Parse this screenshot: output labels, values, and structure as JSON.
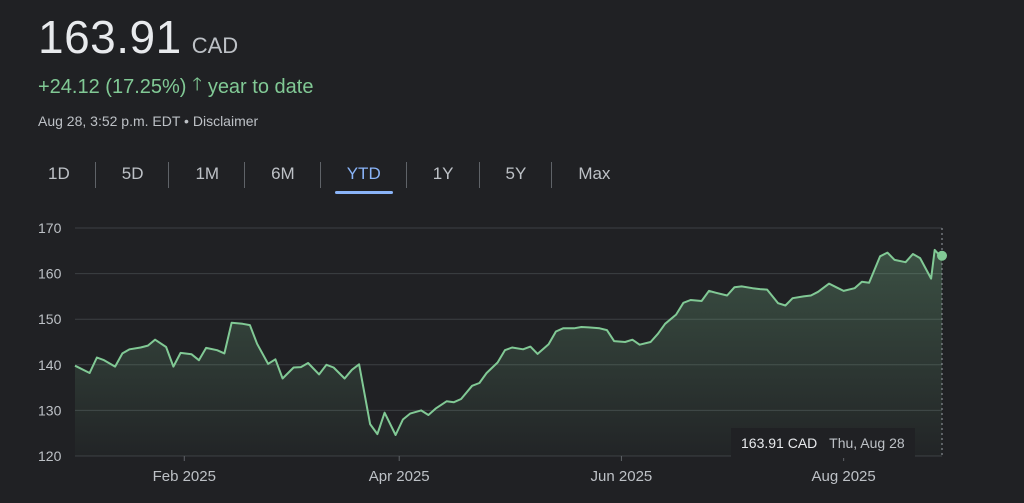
{
  "quote": {
    "price": "163.91",
    "currency": "CAD",
    "change": "+24.12 (17.25%)",
    "period": "year to date",
    "timestamp": "Aug 28, 3:52 p.m. EDT",
    "separator": "•",
    "disclaimer": "Disclaimer"
  },
  "tabs": [
    {
      "label": "1D"
    },
    {
      "label": "5D"
    },
    {
      "label": "1M"
    },
    {
      "label": "6M"
    },
    {
      "label": "YTD",
      "active": true
    },
    {
      "label": "1Y"
    },
    {
      "label": "5Y"
    },
    {
      "label": "Max"
    }
  ],
  "tooltip": {
    "value": "163.91 CAD",
    "date": "Thu, Aug 28"
  },
  "colors": {
    "line": "#81c995",
    "accent": "#8ab4f8",
    "background": "#202124"
  },
  "chart_data": {
    "type": "area",
    "ylim": [
      120,
      170
    ],
    "yticks": [
      120,
      130,
      140,
      150,
      160,
      170
    ],
    "grid": true,
    "x_tick_labels": [
      "Feb 2025",
      "Apr 2025",
      "Jun 2025",
      "Aug 2025"
    ],
    "x_ticks": [
      "2025-02-01",
      "2025-04-01",
      "2025-06-01",
      "2025-08-01"
    ],
    "series": [
      {
        "dates": [
          "2025-01-02",
          "2025-01-06",
          "2025-01-08",
          "2025-01-10",
          "2025-01-13",
          "2025-01-15",
          "2025-01-17",
          "2025-01-20",
          "2025-01-22",
          "2025-01-24",
          "2025-01-27",
          "2025-01-29",
          "2025-01-31",
          "2025-02-03",
          "2025-02-05",
          "2025-02-07",
          "2025-02-10",
          "2025-02-12",
          "2025-02-14",
          "2025-02-17",
          "2025-02-19",
          "2025-02-21",
          "2025-02-24",
          "2025-02-26",
          "2025-02-28",
          "2025-03-03",
          "2025-03-05",
          "2025-03-07",
          "2025-03-10",
          "2025-03-12",
          "2025-03-14",
          "2025-03-17",
          "2025-03-19",
          "2025-03-21",
          "2025-03-24",
          "2025-03-26",
          "2025-03-28",
          "2025-03-31",
          "2025-04-02",
          "2025-04-04",
          "2025-04-07",
          "2025-04-09",
          "2025-04-11",
          "2025-04-14",
          "2025-04-16",
          "2025-04-18",
          "2025-04-21",
          "2025-04-23",
          "2025-04-25",
          "2025-04-28",
          "2025-04-30",
          "2025-05-02",
          "2025-05-05",
          "2025-05-07",
          "2025-05-09",
          "2025-05-12",
          "2025-05-14",
          "2025-05-16",
          "2025-05-19",
          "2025-05-21",
          "2025-05-23",
          "2025-05-26",
          "2025-05-28",
          "2025-05-30",
          "2025-06-02",
          "2025-06-04",
          "2025-06-06",
          "2025-06-09",
          "2025-06-11",
          "2025-06-13",
          "2025-06-16",
          "2025-06-18",
          "2025-06-20",
          "2025-06-23",
          "2025-06-25",
          "2025-06-27",
          "2025-06-30",
          "2025-07-02",
          "2025-07-04",
          "2025-07-07",
          "2025-07-09",
          "2025-07-11",
          "2025-07-14",
          "2025-07-16",
          "2025-07-18",
          "2025-07-21",
          "2025-07-23",
          "2025-07-25",
          "2025-07-28",
          "2025-07-30",
          "2025-08-01",
          "2025-08-04",
          "2025-08-06",
          "2025-08-08",
          "2025-08-11",
          "2025-08-13",
          "2025-08-15",
          "2025-08-18",
          "2025-08-20",
          "2025-08-22",
          "2025-08-25",
          "2025-08-26",
          "2025-08-27",
          "2025-08-28"
        ],
        "values": [
          139.8,
          138.2,
          141.6,
          141.0,
          139.6,
          142.5,
          143.4,
          143.8,
          144.2,
          145.5,
          143.9,
          139.6,
          142.6,
          142.3,
          141.0,
          143.7,
          143.2,
          142.5,
          149.2,
          149.0,
          148.7,
          144.6,
          140.2,
          141.2,
          137.0,
          139.4,
          139.5,
          140.4,
          137.9,
          140.0,
          139.4,
          137.0,
          138.9,
          140.1,
          127.0,
          124.8,
          129.5,
          124.6,
          128.0,
          129.3,
          130.0,
          129.0,
          130.4,
          132.0,
          131.8,
          132.5,
          135.4,
          136.0,
          138.2,
          140.5,
          143.2,
          143.8,
          143.4,
          144.0,
          142.4,
          144.5,
          147.3,
          148.0,
          148.0,
          148.3,
          148.2,
          148.0,
          147.6,
          145.2,
          145.0,
          145.5,
          144.4,
          145.0,
          146.8,
          149.0,
          151.0,
          153.6,
          154.2,
          154.0,
          156.2,
          155.8,
          155.2,
          157.0,
          157.2,
          156.8,
          156.6,
          156.5,
          153.5,
          153.0,
          154.6,
          155.0,
          155.2,
          156.0,
          157.8,
          157.0,
          156.2,
          156.8,
          158.2,
          158.0,
          163.8,
          164.6,
          163.0,
          162.5,
          164.3,
          163.4,
          158.9,
          165.2,
          164.3,
          163.91
        ]
      }
    ],
    "last_point": {
      "date": "2025-08-28",
      "value": 163.91
    }
  }
}
